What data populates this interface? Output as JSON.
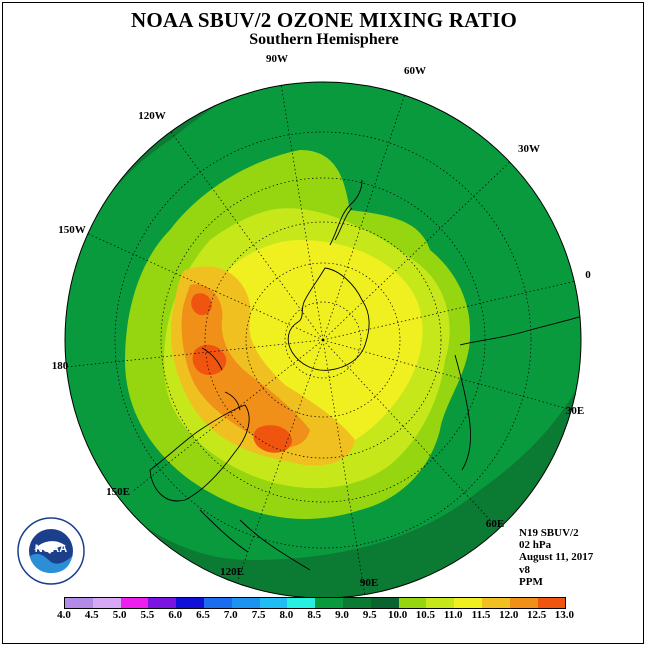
{
  "title": "NOAA SBUV/2 OZONE MIXING RATIO",
  "subtitle": "Southern Hemisphere",
  "info": {
    "satellite": "N19 SBUV/2",
    "pressure_level": "02 hPa",
    "date": "August 11, 2017",
    "version": "v8",
    "units": "PPM"
  },
  "logo": {
    "name": "noaa-logo",
    "text": "NOAA"
  },
  "longitude_labels": [
    {
      "text": "90W",
      "lon": -90
    },
    {
      "text": "60W",
      "lon": -60
    },
    {
      "text": "30W",
      "lon": -30
    },
    {
      "text": "0",
      "lon": 0
    },
    {
      "text": "30E",
      "lon": 30
    },
    {
      "text": "60E",
      "lon": 60
    },
    {
      "text": "90E",
      "lon": 90
    },
    {
      "text": "120E",
      "lon": 120
    },
    {
      "text": "150E",
      "lon": 150
    },
    {
      "text": "180",
      "lon": 180
    },
    {
      "text": "150W",
      "lon": -150
    },
    {
      "text": "120W",
      "lon": -120
    }
  ],
  "colorbar": {
    "ticks": [
      "4.0",
      "4.5",
      "5.0",
      "5.5",
      "6.0",
      "6.5",
      "7.0",
      "7.5",
      "8.0",
      "8.5",
      "9.0",
      "9.5",
      "10.0",
      "10.5",
      "11.0",
      "11.5",
      "12.0",
      "12.5",
      "13.0"
    ],
    "colors": [
      "#b28ae8",
      "#d7a9f5",
      "#ee1fee",
      "#7a14e0",
      "#1010d8",
      "#1c6cf0",
      "#1d93f1",
      "#20bdf4",
      "#27f0e0",
      "#0a9a3e",
      "#0b7a32",
      "#0a6430",
      "#96d610",
      "#c6e81a",
      "#f0f020",
      "#f0c020",
      "#f09018",
      "#f05510",
      "#e01010",
      "#8a5a30"
    ],
    "value_range": [
      4.0,
      13.0
    ]
  },
  "map_data": {
    "projection": "south polar stereographic",
    "outer_value_ppm": 8.5,
    "contours_ppm": [
      9.0,
      9.5,
      10.0,
      10.5,
      11.0,
      11.5
    ]
  }
}
